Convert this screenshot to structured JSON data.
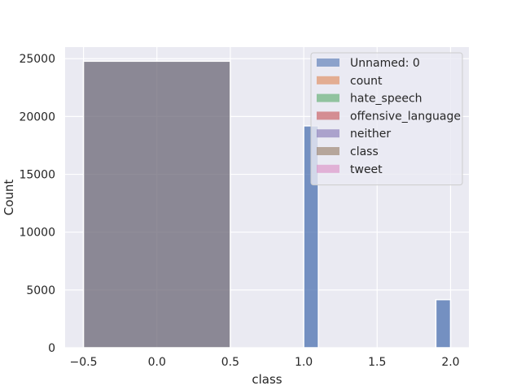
{
  "chart_data": {
    "type": "bar",
    "title": "",
    "xlabel": "class",
    "ylabel": "Count",
    "xlim": [
      -0.625,
      2.125
    ],
    "ylim": [
      0,
      26000
    ],
    "xticks": [
      -0.5,
      0.0,
      0.5,
      1.0,
      1.5,
      2.0
    ],
    "xtick_labels": [
      "−0.5",
      "0.0",
      "0.5",
      "1.0",
      "1.5",
      "2.0"
    ],
    "yticks": [
      0,
      5000,
      10000,
      15000,
      20000,
      25000
    ],
    "ytick_labels": [
      "0",
      "5000",
      "10000",
      "15000",
      "20000",
      "25000"
    ],
    "grid": true,
    "legend_position": "top-right",
    "bars": [
      {
        "x_start": -0.5,
        "x_end": 0.5,
        "value": 24783,
        "color": "#6b6775"
      },
      {
        "x_start": 1.0,
        "x_end": 1.1,
        "value": 19190,
        "color": "#4c72b0"
      },
      {
        "x_start": 1.9,
        "x_end": 2.0,
        "value": 4163,
        "color": "#4c72b0"
      }
    ],
    "legend": [
      {
        "label": "Unnamed: 0",
        "color": "#4c72b0"
      },
      {
        "label": "count",
        "color": "#dd8452"
      },
      {
        "label": "hate_speech",
        "color": "#55a868"
      },
      {
        "label": "offensive_language",
        "color": "#c44e52"
      },
      {
        "label": "neither",
        "color": "#8172b3"
      },
      {
        "label": "class",
        "color": "#937860"
      },
      {
        "label": "tweet",
        "color": "#da8bc3"
      }
    ],
    "colors": {
      "plot_background": "#eaeaf2",
      "grid": "#ffffff",
      "legend_background": "#eaeaf2"
    }
  }
}
